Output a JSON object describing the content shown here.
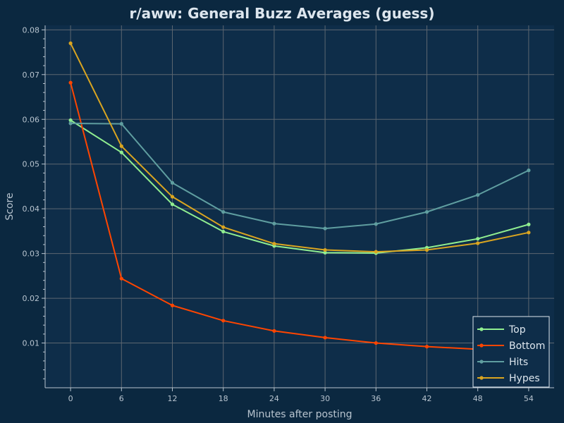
{
  "chart_data": {
    "type": "line",
    "title": "r/aww: General Buzz Averages (guess)",
    "xlabel": "Minutes after posting",
    "ylabel": "Score",
    "x": [
      0,
      6,
      12,
      18,
      24,
      30,
      36,
      42,
      48,
      54
    ],
    "xlim": [
      -3,
      57
    ],
    "ylim": [
      0.0,
      0.081
    ],
    "xticks": [
      0,
      6,
      12,
      18,
      24,
      30,
      36,
      42,
      48,
      54
    ],
    "yticks": [
      0.01,
      0.02,
      0.03,
      0.04,
      0.05,
      0.06,
      0.07,
      0.08
    ],
    "ytick_labels": [
      "0.01",
      "0.02",
      "0.03",
      "0.04",
      "0.05",
      "0.06",
      "0.07",
      "0.08"
    ],
    "grid": true,
    "legend": "bottom-right",
    "series": [
      {
        "name": "Top",
        "color": "#90ee90",
        "values": [
          0.0598,
          0.0526,
          0.041,
          0.0349,
          0.0317,
          0.0302,
          0.0301,
          0.0313,
          0.0333,
          0.0365
        ]
      },
      {
        "name": "Bottom",
        "color": "#ff4500",
        "values": [
          0.0682,
          0.0244,
          0.0184,
          0.015,
          0.0127,
          0.0112,
          0.01,
          0.0092,
          0.0086,
          0.0081
        ]
      },
      {
        "name": "Hits",
        "color": "#5f9ea0",
        "values": [
          0.0591,
          0.059,
          0.0458,
          0.0393,
          0.0367,
          0.0356,
          0.0366,
          0.0393,
          0.0431,
          0.0486
        ]
      },
      {
        "name": "Hypes",
        "color": "#daa520",
        "values": [
          0.077,
          0.054,
          0.0427,
          0.0359,
          0.0322,
          0.0308,
          0.0304,
          0.0308,
          0.0323,
          0.0347
        ]
      }
    ],
    "colors": {
      "background": "#0b2840",
      "plot_background": "#0e2d49",
      "grid": "#5c6670",
      "axis": "#b8c4cf",
      "text": "#dde6ee",
      "legend_border": "#dde6ee"
    }
  }
}
